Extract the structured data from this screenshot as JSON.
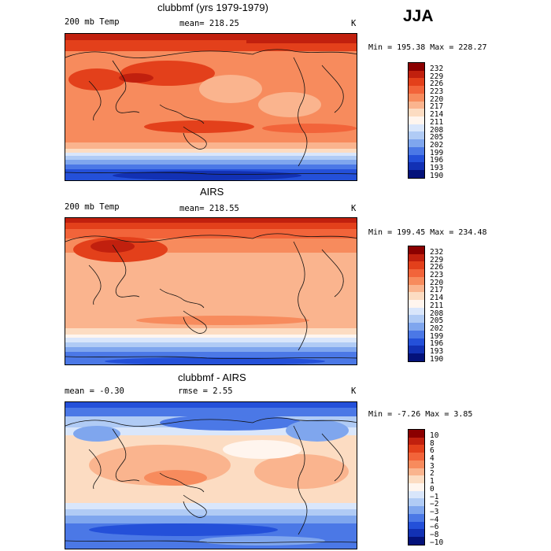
{
  "season": "JJA",
  "panels": [
    {
      "title": "clubbmf (yrs 1979-1979)",
      "left_label": "200 mb Temp",
      "center_label": "mean= 218.25",
      "right_label": "K",
      "range_text": "Min = 195.38 Max = 228.27",
      "levels": [
        "232",
        "229",
        "226",
        "223",
        "220",
        "217",
        "214",
        "211",
        "208",
        "205",
        "202",
        "199",
        "196",
        "193",
        "190"
      ],
      "colors": [
        "#8b0000",
        "#c1200e",
        "#e3401b",
        "#f2643a",
        "#f78b5d",
        "#fab48e",
        "#fcdcc2",
        "#fff5ee",
        "#d9e6fb",
        "#b0cbf5",
        "#7fa6ee",
        "#4b78e6",
        "#2450d9",
        "#1231b4",
        "#04127a"
      ]
    },
    {
      "title": "AIRS",
      "left_label": "200 mb Temp",
      "center_label": "mean= 218.55",
      "right_label": "K",
      "range_text": "Min = 199.45 Max = 234.48",
      "levels": [
        "232",
        "229",
        "226",
        "223",
        "220",
        "217",
        "214",
        "211",
        "208",
        "205",
        "202",
        "199",
        "196",
        "193",
        "190"
      ],
      "colors": [
        "#8b0000",
        "#c1200e",
        "#e3401b",
        "#f2643a",
        "#f78b5d",
        "#fab48e",
        "#fcdcc2",
        "#fff5ee",
        "#d9e6fb",
        "#b0cbf5",
        "#7fa6ee",
        "#4b78e6",
        "#2450d9",
        "#1231b4",
        "#04127a"
      ]
    },
    {
      "title": "clubbmf - AIRS",
      "left_label": "mean =  -0.30",
      "center_label": "rmse =   2.55",
      "right_label": "K",
      "range_text": "Min =  -7.26 Max =    3.85",
      "levels": [
        "10",
        "8",
        "6",
        "4",
        "3",
        "2",
        "1",
        "0",
        "−1",
        "−2",
        "−3",
        "−4",
        "−6",
        "−8",
        "−10"
      ],
      "colors": [
        "#8b0000",
        "#c1200e",
        "#e3401b",
        "#f2643a",
        "#f78b5d",
        "#fab48e",
        "#fcdcc2",
        "#fff5ee",
        "#d9e6fb",
        "#b0cbf5",
        "#7fa6ee",
        "#4b78e6",
        "#2450d9",
        "#1231b4",
        "#04127a"
      ]
    }
  ]
}
